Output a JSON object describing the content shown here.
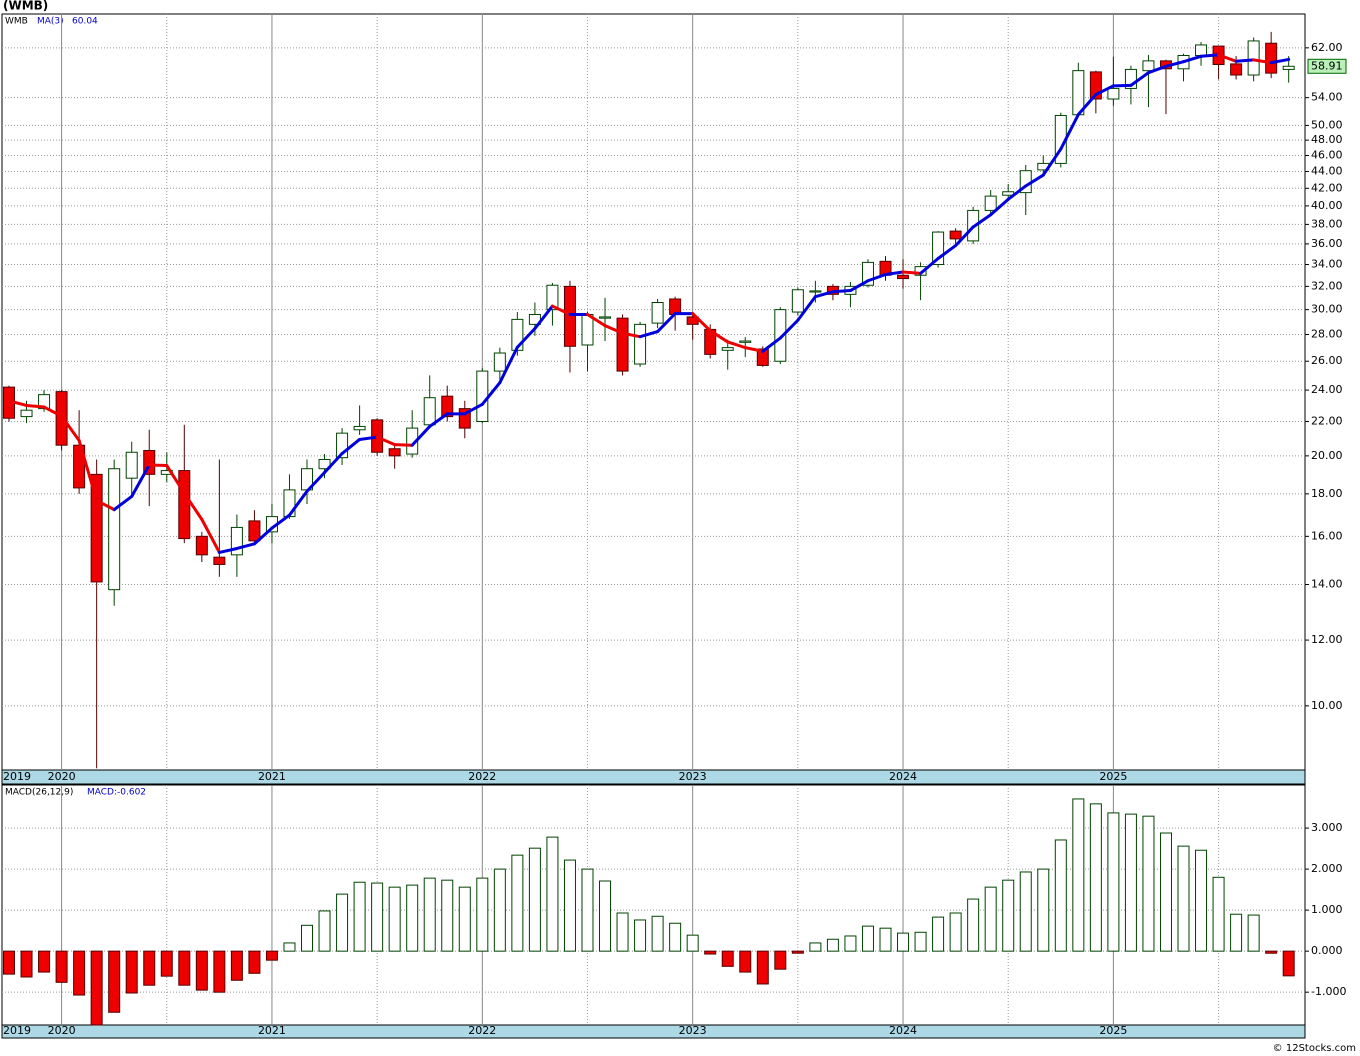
{
  "chart_data": [
    {
      "type": "candlestick",
      "title": "(WMB)",
      "symbol": "WMB",
      "log_scale": true,
      "grid": true,
      "up_color": "#ffffff",
      "up_edge": "#004400",
      "down_color": "#ee0000",
      "down_edge": "#550000",
      "categories": [
        "2019",
        null,
        null,
        "2020",
        null,
        null,
        null,
        null,
        null,
        null,
        null,
        null,
        null,
        null,
        null,
        "2021",
        null,
        null,
        null,
        null,
        null,
        null,
        null,
        null,
        null,
        null,
        null,
        "2022",
        null,
        null,
        null,
        null,
        null,
        null,
        null,
        null,
        null,
        null,
        null,
        "2023",
        null,
        null,
        null,
        null,
        null,
        null,
        null,
        null,
        null,
        null,
        null,
        "2024",
        null,
        null,
        null,
        null,
        null,
        null,
        null,
        null,
        null,
        null,
        null,
        "2025",
        null,
        null,
        null,
        null,
        null,
        null,
        null,
        null,
        null,
        null
      ],
      "open": [
        24.2,
        22.3,
        22.8,
        23.9,
        20.6,
        19.0,
        13.8,
        18.8,
        20.3,
        19.0,
        19.2,
        16.0,
        15.1,
        15.2,
        16.7,
        16.2,
        16.9,
        18.2,
        19.3,
        19.9,
        21.5,
        22.1,
        20.4,
        20.1,
        21.8,
        23.6,
        22.8,
        22.0,
        25.3,
        26.8,
        28.8,
        30.0,
        32.0,
        27.2,
        29.3,
        29.3,
        25.8,
        28.9,
        30.9,
        29.4,
        28.4,
        26.8,
        27.4,
        26.9,
        26.0,
        29.8,
        31.5,
        32.0,
        31.3,
        32.1,
        34.3,
        33.0,
        33.0,
        34.0,
        37.3,
        36.3,
        39.5,
        41.2,
        41.5,
        44.2,
        45.0,
        51.5,
        58.0,
        53.8,
        55.4,
        58.2,
        59.8,
        58.5,
        60.7,
        62.3,
        59.3,
        57.5,
        62.8,
        58.4
      ],
      "high": [
        24.3,
        23.3,
        24.0,
        24.0,
        22.7,
        19.8,
        19.8,
        20.8,
        21.5,
        20.2,
        21.8,
        16.2,
        19.8,
        17.0,
        17.2,
        17.5,
        19.0,
        19.8,
        20.1,
        21.6,
        23.0,
        22.2,
        20.7,
        22.7,
        25.0,
        24.3,
        23.3,
        25.5,
        27.0,
        29.8,
        30.6,
        32.3,
        32.5,
        29.8,
        31.0,
        29.6,
        29.0,
        30.9,
        31.1,
        29.8,
        28.8,
        27.6,
        27.8,
        27.1,
        30.2,
        31.9,
        32.5,
        32.2,
        32.4,
        34.5,
        34.8,
        34.5,
        34.2,
        37.3,
        37.6,
        39.9,
        41.8,
        42.5,
        44.8,
        46.0,
        51.8,
        59.5,
        58.2,
        60.5,
        59.0,
        60.8,
        60.0,
        61.0,
        63.0,
        62.4,
        60.6,
        63.8,
        64.8,
        60.6
      ],
      "low": [
        22.0,
        21.9,
        22.6,
        20.3,
        18.0,
        8.41,
        13.2,
        17.9,
        17.4,
        18.6,
        15.7,
        14.9,
        14.3,
        14.3,
        15.6,
        15.7,
        16.8,
        17.5,
        18.8,
        19.5,
        21.2,
        20.0,
        19.3,
        19.9,
        21.6,
        22.0,
        21.0,
        21.9,
        24.7,
        26.4,
        27.9,
        28.7,
        25.2,
        25.3,
        27.5,
        25.0,
        25.6,
        28.5,
        28.3,
        27.6,
        26.2,
        25.4,
        26.3,
        25.6,
        25.8,
        29.5,
        30.6,
        30.8,
        30.2,
        31.9,
        32.5,
        31.8,
        30.8,
        33.7,
        35.8,
        36.0,
        39.2,
        40.9,
        39.0,
        43.5,
        44.5,
        51.2,
        51.7,
        52.8,
        53.0,
        52.6,
        51.6,
        56.5,
        59.0,
        56.8,
        56.8,
        56.5,
        57.0,
        56.3
      ],
      "close": [
        22.2,
        22.7,
        23.7,
        20.6,
        18.3,
        14.1,
        19.3,
        20.2,
        19.0,
        19.2,
        15.9,
        15.2,
        14.8,
        16.4,
        15.8,
        16.9,
        18.2,
        19.3,
        19.8,
        21.3,
        21.7,
        20.2,
        20.0,
        21.6,
        23.5,
        22.3,
        21.6,
        25.3,
        26.6,
        29.2,
        29.6,
        32.1,
        27.1,
        29.6,
        29.4,
        25.3,
        28.8,
        30.6,
        29.6,
        28.8,
        26.5,
        27.0,
        27.5,
        25.7,
        30.0,
        31.7,
        31.6,
        31.3,
        32.0,
        34.2,
        33.0,
        32.7,
        33.8,
        37.2,
        36.5,
        39.5,
        41.1,
        41.6,
        44.1,
        45.0,
        51.4,
        58.2,
        53.8,
        55.4,
        58.4,
        59.8,
        58.5,
        60.7,
        62.5,
        59.2,
        57.5,
        63.2,
        57.8,
        58.91
      ],
      "series": [
        {
          "name": "MA(3)",
          "up_color": "#0000dd",
          "down_color": "#ee0000",
          "values": [
            23.3,
            23.0,
            22.9,
            22.33,
            20.87,
            17.67,
            17.23,
            17.87,
            19.5,
            19.47,
            18.03,
            16.77,
            15.3,
            15.47,
            15.67,
            16.37,
            16.97,
            18.13,
            19.1,
            20.13,
            20.93,
            21.07,
            20.63,
            20.6,
            21.7,
            22.47,
            22.47,
            23.07,
            24.5,
            27.03,
            28.47,
            30.3,
            29.6,
            29.6,
            28.7,
            28.1,
            27.83,
            28.23,
            29.67,
            29.67,
            28.3,
            27.43,
            27.0,
            26.73,
            27.73,
            29.13,
            31.1,
            31.53,
            31.63,
            32.5,
            33.07,
            33.3,
            33.17,
            34.57,
            35.83,
            37.73,
            39.03,
            40.73,
            42.27,
            43.57,
            46.83,
            51.53,
            54.47,
            55.8,
            55.87,
            57.87,
            58.9,
            59.67,
            60.57,
            60.8,
            59.73,
            59.97,
            59.5,
            60.04
          ]
        }
      ],
      "ylim": [
        8.37,
        68.1
      ],
      "yticks": [
        {
          "value": 10,
          "label": "10.00"
        },
        {
          "value": 12,
          "label": "12.00"
        },
        {
          "value": 14,
          "label": "14.00"
        },
        {
          "value": 16,
          "label": "16.00"
        },
        {
          "value": 18,
          "label": "18.00"
        },
        {
          "value": 20,
          "label": "20.00"
        },
        {
          "value": 22,
          "label": "22.00"
        },
        {
          "value": 24,
          "label": "24.00"
        },
        {
          "value": 26,
          "label": "26.00"
        },
        {
          "value": 28,
          "label": "28.00"
        },
        {
          "value": 30,
          "label": "30.00"
        },
        {
          "value": 32,
          "label": "32.00"
        },
        {
          "value": 34,
          "label": "34.00"
        },
        {
          "value": 36,
          "label": "36.00"
        },
        {
          "value": 38,
          "label": "38.00"
        },
        {
          "value": 40,
          "label": "40.00"
        },
        {
          "value": 42,
          "label": "42.00"
        },
        {
          "value": 44,
          "label": "44.00"
        },
        {
          "value": 46,
          "label": "46.00"
        },
        {
          "value": 48,
          "label": "48.00"
        },
        {
          "value": 50,
          "label": "50.00"
        },
        {
          "value": 54,
          "label": "54.00"
        },
        {
          "value": 62,
          "label": "62.00"
        }
      ]
    },
    {
      "type": "bar",
      "title": "MACD(26,12,9)",
      "value_text": "MACD:-0.602",
      "grid": true,
      "up_color": "#ffffff",
      "up_edge": "#004400",
      "down_color": "#ee0000",
      "down_edge": "#550000",
      "values": [
        -0.56,
        -0.63,
        -0.51,
        -0.76,
        -1.07,
        -1.8,
        -1.49,
        -1.02,
        -0.83,
        -0.61,
        -0.83,
        -0.95,
        -1.0,
        -0.71,
        -0.54,
        -0.22,
        0.2,
        0.63,
        0.98,
        1.39,
        1.68,
        1.66,
        1.56,
        1.61,
        1.78,
        1.73,
        1.56,
        1.78,
        2.0,
        2.34,
        2.51,
        2.78,
        2.22,
        2.0,
        1.71,
        0.93,
        0.76,
        0.85,
        0.68,
        0.39,
        -0.07,
        -0.37,
        -0.51,
        -0.8,
        -0.44,
        -0.05,
        0.2,
        0.29,
        0.37,
        0.61,
        0.56,
        0.44,
        0.46,
        0.83,
        0.93,
        1.27,
        1.56,
        1.73,
        1.93,
        2.0,
        2.71,
        3.71,
        3.59,
        3.37,
        3.34,
        3.29,
        2.88,
        2.56,
        2.46,
        1.8,
        0.9,
        0.88,
        -0.05,
        -0.602
      ],
      "ylim": [
        -1.8,
        4.05
      ],
      "yticks": [
        {
          "value": 3,
          "label": "3.000"
        },
        {
          "value": 2,
          "label": "2.000"
        },
        {
          "value": 1,
          "label": "1.000"
        },
        {
          "value": 0,
          "label": "0.000"
        },
        {
          "value": -1,
          "label": "-1.000"
        }
      ]
    }
  ],
  "footer": "© 12Stocks.com"
}
